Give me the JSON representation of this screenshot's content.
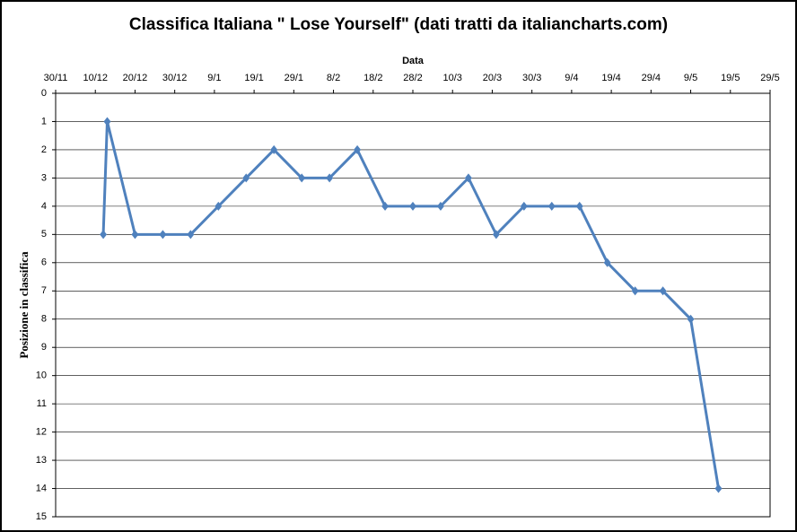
{
  "chart_data": {
    "type": "line",
    "title": "Classifica Italiana \" Lose Yourself\" (dati tratti da italiancharts.com)",
    "x_label": "Data",
    "y_label": "Posizione in classifica",
    "x": [
      "12/12",
      "13/12",
      "20/12",
      "27/12",
      "3/1",
      "10/1",
      "17/1",
      "24/1",
      "31/1",
      "7/2",
      "14/2",
      "21/2",
      "28/2",
      "7/3",
      "14/3",
      "21/3",
      "28/3",
      "4/4",
      "11/4",
      "18/4",
      "25/4",
      "2/5",
      "9/5",
      "16/5"
    ],
    "series": [
      {
        "name": "Lose Yourself",
        "color": "#4f81bd",
        "values": [
          5,
          1,
          5,
          5,
          5,
          4,
          3,
          2,
          3,
          3,
          2,
          4,
          4,
          4,
          3,
          5,
          4,
          4,
          4,
          6,
          7,
          7,
          8,
          14
        ]
      }
    ],
    "xlim": [
      "30/11",
      "29/5"
    ],
    "xticks": [
      "30/11",
      "10/12",
      "20/12",
      "30/12",
      "9/1",
      "19/1",
      "29/1",
      "8/2",
      "18/2",
      "28/2",
      "10/3",
      "20/3",
      "30/3",
      "9/4",
      "19/4",
      "29/4",
      "9/5",
      "19/5",
      "29/5"
    ],
    "ylim": [
      15,
      0
    ],
    "yticks": [
      0,
      1,
      2,
      3,
      4,
      5,
      6,
      7,
      8,
      9,
      10,
      11,
      12,
      13,
      14,
      15
    ],
    "grid": true
  }
}
